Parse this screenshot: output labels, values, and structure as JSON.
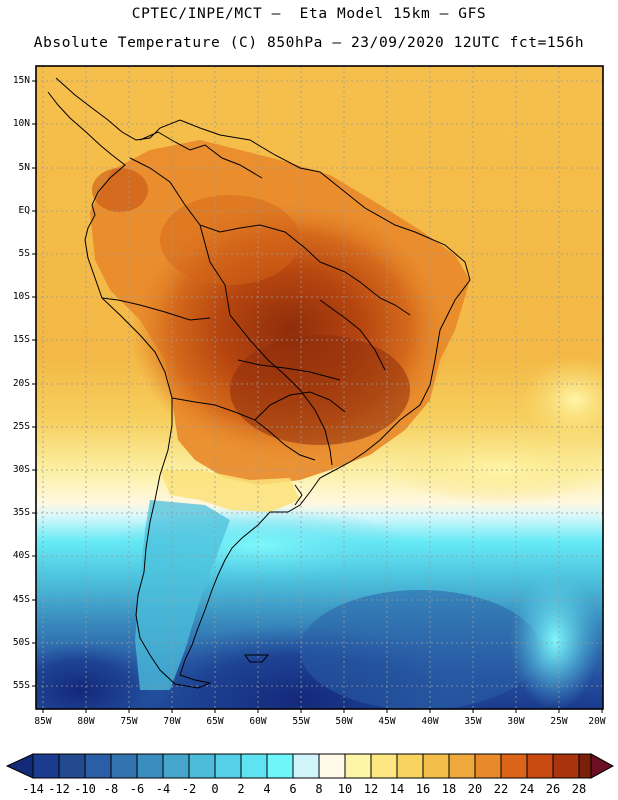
{
  "title": {
    "line1": "CPTEC/INPE/MCT —  Eta Model 15km — GFS",
    "line2": "Absolute Temperature (C) 850hPa — 23/09/2020 12UTC fct=156h"
  },
  "map": {
    "variable": "Absolute Temperature (C) 850hPa",
    "lat_labels": [
      "15N",
      "10N",
      "5N",
      "EQ",
      "5S",
      "10S",
      "15S",
      "20S",
      "25S",
      "30S",
      "35S",
      "40S",
      "45S",
      "50S",
      "55S"
    ],
    "lon_labels": [
      "85W",
      "80W",
      "75W",
      "70W",
      "65W",
      "60W",
      "55W",
      "50W",
      "45W",
      "40W",
      "35W",
      "30W",
      "25W",
      "20W"
    ]
  },
  "colorbar": {
    "labels": [
      "-14",
      "-12",
      "-10",
      "-8",
      "-6",
      "-4",
      "-2",
      "0",
      "2",
      "4",
      "6",
      "8",
      "10",
      "12",
      "14",
      "16",
      "18",
      "20",
      "22",
      "24",
      "26",
      "28"
    ],
    "colors": [
      "#1b3b8e",
      "#23498f",
      "#2a5ea6",
      "#3274b0",
      "#3a8dbf",
      "#46a5cb",
      "#4dbcda",
      "#55d0e8",
      "#5fe3f2",
      "#6ff6fb",
      "#cff5fb",
      "#fffaea",
      "#fdf6a8",
      "#fbe680",
      "#f8d35f",
      "#f3be4a",
      "#efa83b",
      "#e8892a",
      "#dc6418",
      "#c84a10",
      "#a8340d",
      "#7c1f0a"
    ],
    "below_color": "#132a78",
    "above_color": "#6b0f24"
  }
}
